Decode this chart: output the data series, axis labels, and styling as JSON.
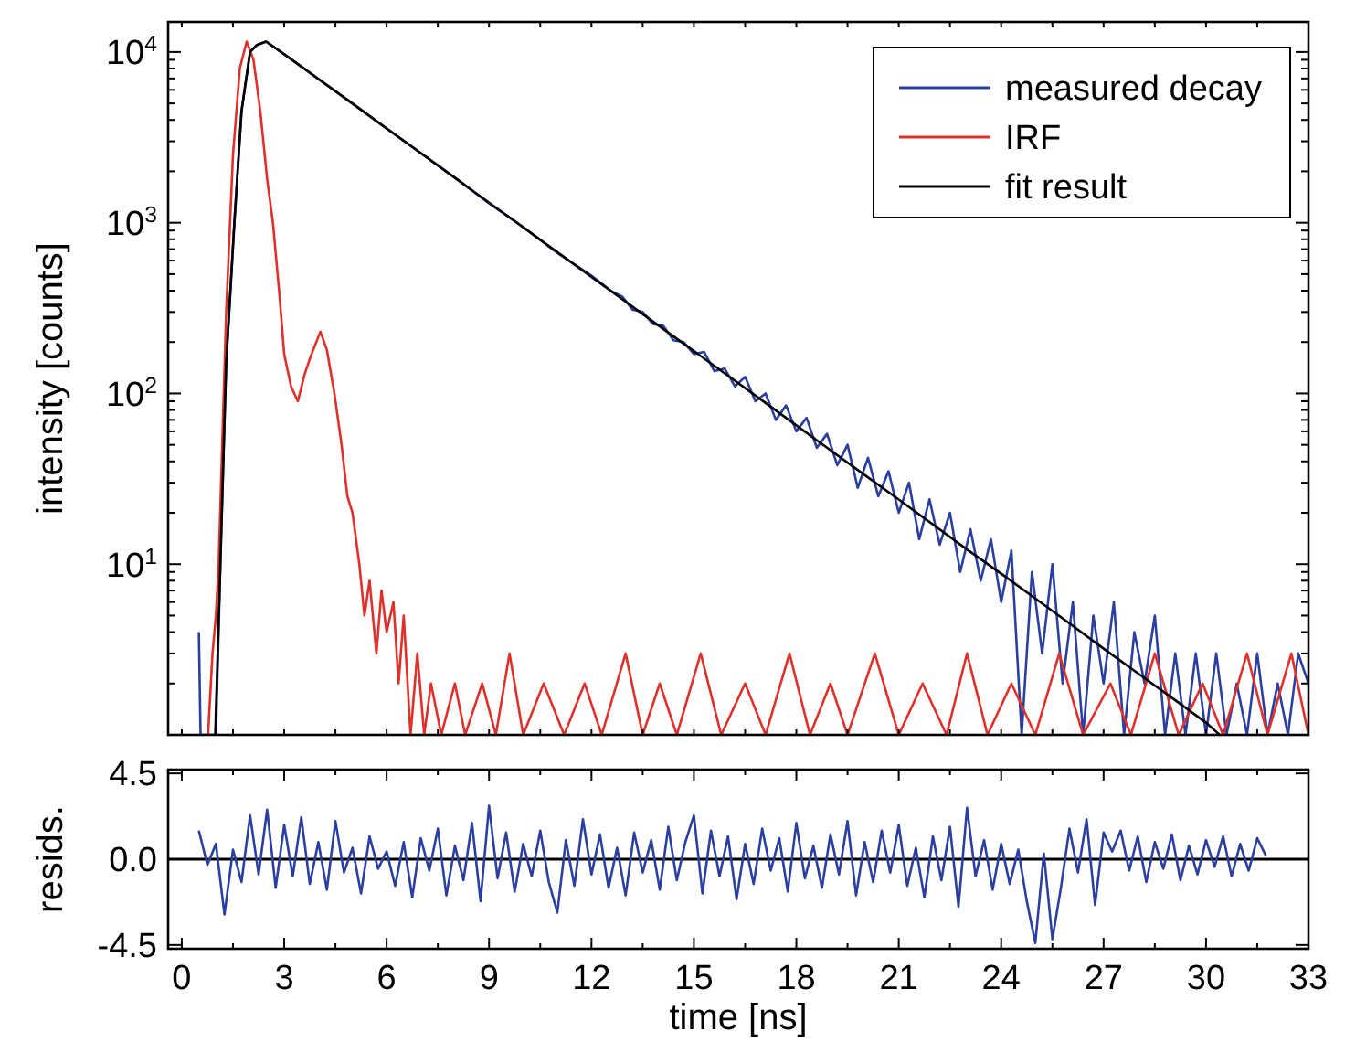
{
  "chart_data": [
    {
      "type": "line",
      "ylabel": "intensity [counts]",
      "log": "y",
      "legend": "top right",
      "tick_labels": "y",
      "xlim": [
        -0.4,
        33
      ],
      "xticks": [
        {
          "value": 0,
          "label": null
        },
        {
          "value": 1.5,
          "label": null
        },
        {
          "value": 3,
          "label": null
        },
        {
          "value": 4.5,
          "label": null
        },
        {
          "value": 6,
          "label": null
        },
        {
          "value": 7.5,
          "label": null
        },
        {
          "value": 9,
          "label": null
        },
        {
          "value": 10.5,
          "label": null
        },
        {
          "value": 12,
          "label": null
        },
        {
          "value": 13.5,
          "label": null
        },
        {
          "value": 15,
          "label": null
        },
        {
          "value": 16.5,
          "label": null
        },
        {
          "value": 18,
          "label": null
        },
        {
          "value": 19.5,
          "label": null
        },
        {
          "value": 21,
          "label": null
        },
        {
          "value": 22.5,
          "label": null
        },
        {
          "value": 24,
          "label": null
        },
        {
          "value": 25.5,
          "label": null
        },
        {
          "value": 27,
          "label": null
        },
        {
          "value": 28.5,
          "label": null
        },
        {
          "value": 30,
          "label": null
        },
        {
          "value": 31.5,
          "label": null
        },
        {
          "value": 33,
          "label": null
        }
      ],
      "ylim": [
        1,
        15000
      ],
      "yticks": [
        {
          "value": 2,
          "label": null
        },
        {
          "value": 3,
          "label": null
        },
        {
          "value": 4,
          "label": null
        },
        {
          "value": 5,
          "label": null
        },
        {
          "value": 6,
          "label": null
        },
        {
          "value": 7,
          "label": null
        },
        {
          "value": 8,
          "label": null
        },
        {
          "value": 9,
          "label": null
        },
        {
          "value": 10,
          "label": "10$^{1}$"
        },
        {
          "value": 20,
          "label": null
        },
        {
          "value": 30,
          "label": null
        },
        {
          "value": 40,
          "label": null
        },
        {
          "value": 50,
          "label": null
        },
        {
          "value": 60,
          "label": null
        },
        {
          "value": 70,
          "label": null
        },
        {
          "value": 80,
          "label": null
        },
        {
          "value": 90,
          "label": null
        },
        {
          "value": 100,
          "label": "10$^{2}$"
        },
        {
          "value": 200,
          "label": null
        },
        {
          "value": 300,
          "label": null
        },
        {
          "value": 400,
          "label": null
        },
        {
          "value": 500,
          "label": null
        },
        {
          "value": 600,
          "label": null
        },
        {
          "value": 700,
          "label": null
        },
        {
          "value": 800,
          "label": null
        },
        {
          "value": 900,
          "label": null
        },
        {
          "value": 1000,
          "label": "10$^{3}$"
        },
        {
          "value": 2000,
          "label": null
        },
        {
          "value": 3000,
          "label": null
        },
        {
          "value": 4000,
          "label": null
        },
        {
          "value": 5000,
          "label": null
        },
        {
          "value": 6000,
          "label": null
        },
        {
          "value": 7000,
          "label": null
        },
        {
          "value": 8000,
          "label": null
        },
        {
          "value": 9000,
          "label": null
        },
        {
          "value": 10000,
          "label": "10$^{4}$"
        }
      ],
      "series": [
        {
          "name": "measured decay",
          "color": "#2b3fa0",
          "x": [
            0.5,
            0.55,
            1.0,
            1.13,
            1.3,
            1.54,
            1.75,
            2.0,
            2.2,
            2.47,
            3,
            4,
            5,
            6,
            7,
            8,
            9,
            10,
            11,
            12,
            12.3,
            12.6,
            12.9,
            13.2,
            13.5,
            13.8,
            14.1,
            14.4,
            14.7,
            15,
            15.3,
            15.6,
            15.9,
            16.2,
            16.5,
            16.8,
            17.1,
            17.4,
            17.7,
            18,
            18.3,
            18.6,
            18.9,
            19.2,
            19.5,
            19.8,
            20.1,
            20.4,
            20.7,
            21,
            21.3,
            21.6,
            21.9,
            22.2,
            22.5,
            22.8,
            23.1,
            23.4,
            23.7,
            24,
            24.3,
            24.6,
            24.9,
            25.2,
            25.5,
            25.8,
            26.1,
            26.4,
            26.7,
            27,
            27.3,
            27.6,
            27.9,
            28.2,
            28.5,
            28.8,
            29.1,
            29.4,
            29.7,
            30,
            30.3,
            30.6,
            30.9,
            31.2,
            31.5,
            31.8,
            32.1,
            32.4,
            32.7,
            33
          ],
          "values": [
            4,
            1,
            1,
            10,
            150,
            1000,
            4500,
            10000,
            11000,
            11500,
            9700,
            6950,
            5000,
            3560,
            2560,
            1840,
            1300,
            945,
            665,
            490,
            440,
            395,
            370,
            310,
            300,
            255,
            250,
            205,
            200,
            170,
            175,
            135,
            140,
            110,
            125,
            90,
            100,
            70,
            85,
            60,
            72,
            48,
            58,
            38,
            50,
            28,
            42,
            25,
            35,
            20,
            30,
            14,
            24,
            13,
            20,
            9,
            16,
            8,
            14,
            6,
            12,
            1,
            9,
            3,
            10,
            2,
            6,
            1,
            5,
            2,
            6,
            1,
            4,
            2,
            5,
            1,
            3,
            1,
            3,
            1,
            3,
            1,
            2,
            1,
            3,
            1,
            2,
            1,
            3,
            2
          ]
        },
        {
          "name": "IRF",
          "color": "#e0302a",
          "x": [
            0.7,
            0.77,
            0.9,
            1.0,
            1.08,
            1.3,
            1.5,
            1.7,
            1.9,
            2.1,
            2.3,
            2.5,
            2.67,
            2.85,
            3.0,
            3.2,
            3.4,
            3.6,
            3.8,
            4.06,
            4.25,
            4.47,
            4.68,
            4.85,
            5.0,
            5.2,
            5.35,
            5.5,
            5.7,
            5.85,
            6.0,
            6.2,
            6.35,
            6.5,
            6.7,
            6.9,
            7.1,
            7.3,
            7.6,
            8.0,
            8.3,
            8.8,
            9.2,
            9.6,
            10.0,
            10.6,
            11.2,
            11.8,
            12.3,
            13.0,
            13.5,
            14.0,
            14.5,
            15.2,
            15.8,
            16.5,
            17.1,
            17.8,
            18.4,
            19.0,
            19.5,
            20.3,
            21.0,
            21.7,
            22.4,
            23.0,
            23.6,
            24.3,
            25.0,
            25.7,
            26.4,
            27.2,
            27.8,
            28.5,
            29.2,
            29.9,
            30.5,
            31.2,
            31.8,
            32.5,
            33.0
          ],
          "values": [
            1,
            1,
            3,
            5,
            10,
            300,
            2500,
            8000,
            11500,
            9000,
            4500,
            1800,
            1000,
            400,
            170,
            110,
            90,
            130,
            170,
            230,
            180,
            100,
            50,
            25,
            20,
            10,
            5,
            8,
            3,
            7,
            4,
            6,
            2,
            5,
            1,
            3,
            1,
            2,
            1,
            2,
            1,
            2,
            1,
            3,
            1,
            2,
            1,
            2,
            1,
            3,
            1,
            2,
            1,
            3,
            1,
            2,
            1,
            3,
            1,
            2,
            1,
            3,
            1,
            2,
            1,
            3,
            1,
            2,
            1,
            3,
            1,
            2,
            1,
            3,
            1,
            2,
            1,
            3,
            1,
            3,
            1
          ]
        },
        {
          "name": "fit result",
          "color": "#000000",
          "x": [
            0.98,
            1.13,
            1.3,
            1.54,
            1.75,
            2.0,
            2.2,
            2.47,
            3,
            4,
            5,
            6,
            7,
            8,
            9,
            10,
            11,
            12,
            13,
            14,
            15,
            16,
            17,
            18,
            19,
            20,
            21,
            22,
            23,
            24,
            25,
            26,
            27,
            28,
            29,
            30,
            30.4
          ],
          "values": [
            1,
            10,
            150,
            1000,
            4500,
            10000,
            11000,
            11500,
            9700,
            6960,
            4985,
            3570,
            2556,
            1830,
            1311,
            939,
            672,
            481,
            345,
            247,
            177,
            127,
            91,
            65,
            46.5,
            33.3,
            23.9,
            17.1,
            12.2,
            8.8,
            6.3,
            4.5,
            3.2,
            2.3,
            1.65,
            1.18,
            1
          ]
        }
      ]
    },
    {
      "type": "line",
      "xlabel": "time [ns]",
      "ylabel": "resids.",
      "xlim": [
        -0.4,
        33
      ],
      "xticks": [
        0,
        {
          "value": 1.5,
          "label": null
        },
        3,
        {
          "value": 4.5,
          "label": null
        },
        6,
        {
          "value": 7.5,
          "label": null
        },
        9,
        {
          "value": 10.5,
          "label": null
        },
        12,
        {
          "value": 13.5,
          "label": null
        },
        15,
        {
          "value": 16.5,
          "label": null
        },
        18,
        {
          "value": 19.5,
          "label": null
        },
        21,
        {
          "value": 22.5,
          "label": null
        },
        24,
        {
          "value": 25.5,
          "label": null
        },
        27,
        {
          "value": 28.5,
          "label": null
        },
        30,
        {
          "value": 31.5,
          "label": null
        },
        33
      ],
      "ylim": [
        -4.7,
        4.7
      ],
      "yticks": [
        -4.5,
        {
          "value": 0,
          "label": "0.0"
        },
        4.5
      ],
      "ref_lines": [
        {
          "axis": "y",
          "value": 0,
          "color": "#000000"
        }
      ],
      "x": [
        0.5,
        0.75,
        1.0,
        1.25,
        1.5,
        1.75,
        2.0,
        2.25,
        2.5,
        2.75,
        3.0,
        3.25,
        3.5,
        3.75,
        4.0,
        4.25,
        4.5,
        4.75,
        5.0,
        5.25,
        5.5,
        5.75,
        6.0,
        6.25,
        6.5,
        6.75,
        7.0,
        7.25,
        7.5,
        7.75,
        8.0,
        8.25,
        8.5,
        8.75,
        9.0,
        9.25,
        9.5,
        9.75,
        10.0,
        10.25,
        10.5,
        10.75,
        11.0,
        11.25,
        11.5,
        11.75,
        12.0,
        12.25,
        12.5,
        12.75,
        13.0,
        13.25,
        13.5,
        13.75,
        14.0,
        14.25,
        14.5,
        14.75,
        15.0,
        15.25,
        15.5,
        15.75,
        16.0,
        16.25,
        16.5,
        16.75,
        17.0,
        17.25,
        17.5,
        17.75,
        18.0,
        18.25,
        18.5,
        18.75,
        19.0,
        19.25,
        19.5,
        19.75,
        20.0,
        20.25,
        20.5,
        20.75,
        21.0,
        21.25,
        21.5,
        21.75,
        22.0,
        22.25,
        22.5,
        22.75,
        23.0,
        23.25,
        23.5,
        23.75,
        24.0,
        24.25,
        24.5,
        24.75,
        25.0,
        25.25,
        25.5,
        25.75,
        26.0,
        26.25,
        26.5,
        26.75,
        27.0,
        27.25,
        27.5,
        27.75,
        28.0,
        28.25,
        28.5,
        28.75,
        29.0,
        29.25,
        29.5,
        29.75,
        30.0,
        30.25,
        30.5,
        30.75,
        31.0,
        31.25,
        31.5,
        31.75
      ],
      "series": [
        {
          "color": "#2b3fa0",
          "values": [
            1.5,
            -0.3,
            0.8,
            -2.9,
            0.5,
            -1.2,
            2.3,
            -0.8,
            2.6,
            -1.5,
            1.8,
            -0.9,
            2.2,
            -1.3,
            0.9,
            -1.6,
            2.0,
            -0.7,
            0.6,
            -1.8,
            1.2,
            -0.5,
            0.4,
            -1.4,
            0.9,
            -2.0,
            1.1,
            -0.6,
            1.6,
            -1.9,
            0.7,
            -1.1,
            1.9,
            -2.2,
            2.8,
            -1.0,
            1.4,
            -1.7,
            0.8,
            -0.9,
            1.5,
            -1.2,
            -2.8,
            1.0,
            -1.4,
            2.1,
            -0.8,
            1.3,
            -1.5,
            0.6,
            -1.9,
            1.4,
            -0.7,
            1.0,
            -1.6,
            1.7,
            -1.1,
            0.9,
            2.3,
            -1.8,
            1.5,
            -0.9,
            1.2,
            -2.1,
            0.8,
            -1.3,
            1.6,
            -0.6,
            1.1,
            -1.7,
            1.9,
            -1.0,
            0.7,
            -1.5,
            1.3,
            -0.8,
            2.0,
            -1.9,
            0.9,
            -1.2,
            1.5,
            -0.7,
            1.8,
            -1.4,
            0.6,
            -2.0,
            1.2,
            -1.1,
            1.7,
            -2.5,
            2.7,
            -0.9,
            1.0,
            -1.6,
            0.8,
            -1.3,
            0.5,
            -2.2,
            -4.4,
            0.3,
            -4.2,
            -1.5,
            1.6,
            -0.7,
            2.1,
            -2.4,
            1.4,
            0.4,
            1.5,
            -0.6,
            1.2,
            -1.2,
            0.9,
            -0.5,
            1.3,
            -1.1,
            0.7,
            -0.8,
            1.0,
            -0.4,
            1.2,
            -0.9,
            0.8,
            -0.6,
            1.1,
            0.2
          ]
        }
      ]
    }
  ]
}
